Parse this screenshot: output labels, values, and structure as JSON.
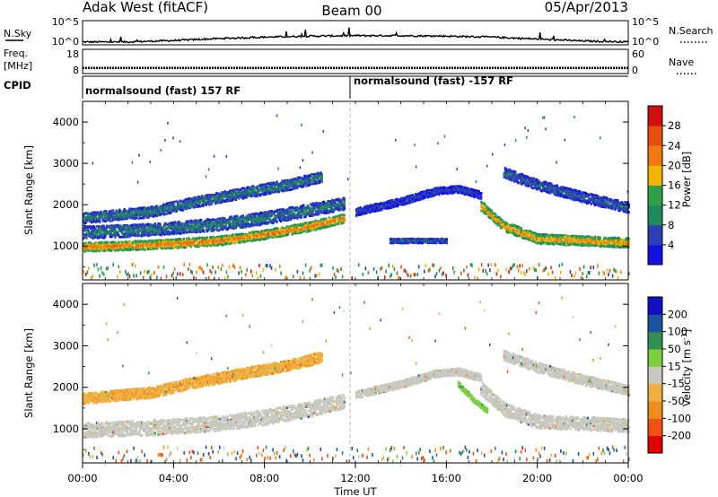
{
  "header": {
    "station": "Adak West (fitACF)",
    "beam": "Beam 00",
    "date": "05/Apr/2013"
  },
  "noise_panel": {
    "left_label": "N.Sky",
    "right_label": "N.Search",
    "left_ticks": [
      "10^5",
      "10^0"
    ],
    "right_ticks": [
      "10^5",
      "10^0"
    ]
  },
  "freq_panel": {
    "left_label_1": "Freq.",
    "left_label_2": "[MHz]",
    "right_label": "Nave",
    "left_ticks": [
      "18",
      "8"
    ],
    "right_ticks": [
      "60",
      "0"
    ]
  },
  "cpid_panel": {
    "label": "CPID",
    "segments": [
      {
        "text": "normalsound (fast) 157 RF",
        "start_h": 0
      },
      {
        "text": "normalsound (fast) -157 RF",
        "start_h": 12
      }
    ]
  },
  "power_panel": {
    "ylabel": "Slant Range [km]",
    "yticks": [
      "1000",
      "2000",
      "3000",
      "4000"
    ],
    "colorbar_label": "Power [dB]",
    "colorbar_ticks": [
      "4",
      "8",
      "12",
      "16",
      "20",
      "24",
      "28"
    ],
    "colorbar_colors": [
      "#1010e0",
      "#2d3fb8",
      "#1e8a5a",
      "#2fa04a",
      "#f2b400",
      "#f07a10",
      "#e85010",
      "#d01010"
    ]
  },
  "velocity_panel": {
    "ylabel": "Slant Range [km]",
    "yticks": [
      "1000",
      "2000",
      "3000",
      "4000"
    ],
    "colorbar_label": "Velocity [m s^-1]",
    "colorbar_ticks": [
      "-200",
      "-100",
      "-50",
      "-15",
      "15",
      "50",
      "100",
      "200"
    ],
    "colorbar_colors": [
      "#e00000",
      "#f05010",
      "#f08c1e",
      "#f0b040",
      "#c8c8c0",
      "#7cd040",
      "#2f9050",
      "#2050a0",
      "#1010c0"
    ]
  },
  "xaxis": {
    "ticks": [
      "00:00",
      "04:00",
      "08:00",
      "12:00",
      "16:00",
      "20:00",
      "00:00"
    ],
    "label": "Time UT"
  },
  "chart_data": [
    {
      "type": "line",
      "ylim_log10": [
        0,
        5
      ],
      "series": [
        {
          "x_hours": [
            0,
            2,
            4,
            6,
            8,
            10,
            12,
            14,
            16,
            18,
            20,
            22,
            24
          ],
          "log10_values": [
            0.6,
            0.6,
            0.9,
            1.3,
            1.6,
            1.8,
            1.9,
            1.9,
            1.8,
            1.6,
            1.2,
            0.8,
            0.6
          ]
        }
      ]
    },
    {
      "type": "line",
      "ylim": [
        8,
        18
      ],
      "series": [
        {
          "x_hours": [
            0,
            24
          ],
          "values": [
            10.3,
            10.3
          ]
        }
      ]
    },
    {
      "type": "heatmap",
      "ylim": [
        180,
        4500
      ],
      "xlim": [
        0,
        24
      ],
      "features": [
        {
          "x_hours": [
            0,
            3,
            6,
            8,
            10,
            11.5
          ],
          "y_km": [
            1000,
            1050,
            1150,
            1300,
            1500,
            1700
          ],
          "width_km": 220,
          "value_dB": 24
        },
        {
          "x_hours": [
            0,
            3,
            6,
            8,
            10,
            11.5
          ],
          "y_km": [
            1350,
            1420,
            1550,
            1700,
            1900,
            2050
          ],
          "width_km": 300,
          "value_dB": 10
        },
        {
          "x_hours": [
            0,
            3,
            5,
            7,
            9,
            10.5
          ],
          "y_km": [
            1700,
            1850,
            2100,
            2300,
            2500,
            2700
          ],
          "width_km": 260,
          "value_dB": 10
        },
        {
          "x_hours": [
            12,
            14,
            15.5,
            16.5,
            17.5
          ],
          "y_km": [
            1850,
            2100,
            2350,
            2400,
            2250
          ],
          "width_km": 180,
          "value_dB": 6
        },
        {
          "x_hours": [
            17.5,
            18.5,
            20,
            22,
            24
          ],
          "y_km": [
            2000,
            1500,
            1200,
            1150,
            1100
          ],
          "width_km": 240,
          "value_dB": 22
        },
        {
          "x_hours": [
            18.5,
            20,
            22,
            24
          ],
          "y_km": [
            2800,
            2500,
            2200,
            1950
          ],
          "width_km": 250,
          "value_dB": 8
        },
        {
          "x_hours": [
            13.5,
            14.5,
            16
          ],
          "y_km": [
            1150,
            1150,
            1150
          ],
          "width_km": 110,
          "value_dB": 8
        }
      ]
    },
    {
      "type": "heatmap",
      "ylim": [
        180,
        4500
      ],
      "xlim": [
        0,
        24
      ],
      "features": [
        {
          "x_hours": [
            0,
            3,
            6,
            8,
            10,
            11.5
          ],
          "y_km": [
            1000,
            1050,
            1150,
            1300,
            1500,
            1700
          ],
          "width_km": 360,
          "value_ms": 0
        },
        {
          "x_hours": [
            0,
            3,
            5,
            7,
            9,
            10.5
          ],
          "y_km": [
            1750,
            1900,
            2150,
            2350,
            2550,
            2750
          ],
          "width_km": 260,
          "value_ms": -40
        },
        {
          "x_hours": [
            12,
            14,
            15.5,
            16.5,
            17.5
          ],
          "y_km": [
            1850,
            2100,
            2350,
            2400,
            2250
          ],
          "width_km": 180,
          "value_ms": 0
        },
        {
          "x_hours": [
            17.5,
            18.5,
            20,
            22,
            24
          ],
          "y_km": [
            2000,
            1500,
            1200,
            1150,
            1100
          ],
          "width_km": 320,
          "value_ms": 0
        },
        {
          "x_hours": [
            18.5,
            20,
            22,
            24
          ],
          "y_km": [
            2800,
            2500,
            2200,
            1950
          ],
          "width_km": 240,
          "value_ms": 0
        },
        {
          "x_hours": [
            16.5,
            17.2,
            17.8
          ],
          "y_km": [
            2100,
            1700,
            1450
          ],
          "width_km": 120,
          "value_ms": 30
        }
      ]
    }
  ]
}
